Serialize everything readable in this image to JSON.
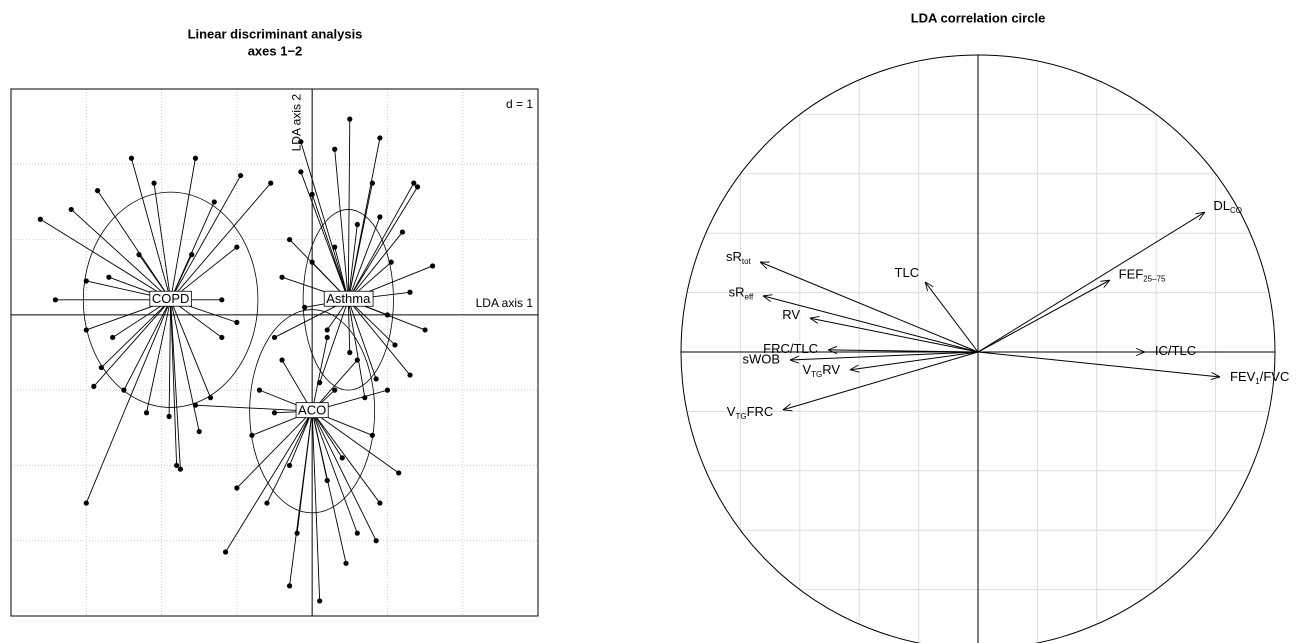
{
  "chart_data": [
    {
      "type": "scatter",
      "title": "Linear discriminant analysis",
      "subtitle": "axes 1−2",
      "grid_label": "d = 1",
      "xlabel": "LDA axis 1",
      "ylabel": "LDA axis 2",
      "xlim": [
        -4,
        3
      ],
      "ylim": [
        -4,
        3
      ],
      "xticks": [
        -3,
        -2,
        -1,
        1,
        2
      ],
      "yticks": [
        -3,
        -2,
        -1,
        1,
        2
      ],
      "series": [
        {
          "name": "COPD",
          "cx": -1.88,
          "cy": 0.2,
          "rx": 1.16,
          "ry": 1.43,
          "x": [
            -3.61,
            -3.41,
            -3.2,
            -2.85,
            -2.4,
            -2.1,
            -1.55,
            -1.3,
            -0.95,
            -0.55,
            -1.0,
            -3.0,
            -2.7,
            -3.0,
            -2.8,
            -2.5,
            -2.2,
            -1.9,
            -1.8,
            -1.5,
            -1.35,
            -3.0,
            -2.9,
            -1.2,
            -1.0,
            -2.3,
            -1.6,
            -1.2,
            -2.65,
            -1.75
          ],
          "y": [
            1.27,
            0.2,
            1.4,
            1.65,
            2.08,
            1.75,
            2.08,
            1.5,
            1.85,
            1.75,
            0.9,
            0.45,
            0.5,
            -0.2,
            -0.7,
            -1.0,
            -1.3,
            -1.35,
            -2.0,
            -1.55,
            -1.1,
            -2.5,
            -0.95,
            -0.3,
            -0.1,
            0.8,
            0.8,
            0.2,
            -0.3,
            -2.05
          ]
        },
        {
          "name": "Asthma",
          "cx": 0.48,
          "cy": 0.2,
          "rx": 0.6,
          "ry": 1.2,
          "x": [
            0.5,
            0.9,
            0.3,
            0.8,
            1.35,
            1.4,
            0.0,
            -0.3,
            1.2,
            1.05,
            1.6,
            1.3,
            0.0,
            -0.4,
            -0.1,
            0.2,
            0.5,
            1.1,
            1.3,
            0.7,
            0.1,
            -0.15,
            -0.15,
            1.0,
            0.6,
            0.3,
            0.9,
            -0.5,
            1.5,
            0.85
          ],
          "y": [
            2.6,
            2.35,
            2.2,
            1.75,
            1.75,
            1.7,
            1.6,
            1.0,
            1.1,
            0.7,
            0.65,
            0.3,
            0.7,
            0.5,
            0.1,
            -0.2,
            -0.5,
            -0.4,
            -0.8,
            -1.1,
            -0.9,
            1.9,
            2.3,
            0.0,
            1.2,
            0.9,
            1.3,
            -0.3,
            -0.2,
            -0.85
          ]
        },
        {
          "name": "ACO",
          "cx": 0.0,
          "cy": -1.28,
          "rx": 0.83,
          "ry": 1.35,
          "x": [
            -1.15,
            -0.3,
            0.1,
            0.45,
            0.9,
            1.15,
            0.8,
            1.0,
            0.6,
            0.2,
            -0.4,
            -0.7,
            -0.8,
            -1.0,
            -0.6,
            -0.3,
            0.2,
            0.4,
            -0.2,
            0.6,
            -0.5,
            0.3,
            -1.55,
            0.85
          ],
          "y": [
            -3.15,
            -3.6,
            -3.8,
            -3.3,
            -2.5,
            -2.1,
            -1.6,
            -1.0,
            -0.6,
            -0.3,
            -0.6,
            -1.0,
            -1.6,
            -2.3,
            -2.5,
            -2.0,
            -2.2,
            -1.9,
            -2.9,
            -2.9,
            -1.3,
            -1.0,
            -1.2,
            -3.0
          ]
        }
      ]
    },
    {
      "type": "correlation_circle",
      "title": "LDA correlation circle",
      "xlim": [
        -1,
        1
      ],
      "ylim": [
        -1,
        1
      ],
      "grid": [
        -0.8,
        -0.6,
        -0.4,
        -0.2,
        0.2,
        0.4,
        0.6,
        0.8
      ],
      "arrows": [
        {
          "label": [
            "DL",
            "CO"
          ],
          "x": 0.764,
          "y": 0.471
        },
        {
          "label": [
            "FEF",
            "25–75"
          ],
          "x": 0.444,
          "y": 0.242
        },
        {
          "label": [
            "IC/TLC"
          ],
          "x": 0.562,
          "y": 0
        },
        {
          "label": [
            "FEV",
            "1",
            "/FVC"
          ],
          "x": 0.815,
          "y": -0.084
        },
        {
          "label": [
            "TLC"
          ],
          "x": -0.178,
          "y": 0.236
        },
        {
          "label": [
            "sR",
            "tot"
          ],
          "x": -0.734,
          "y": 0.303
        },
        {
          "label": [
            "sR",
            "eff"
          ],
          "x": -0.724,
          "y": 0.189
        },
        {
          "label": [
            "RV"
          ],
          "x": -0.566,
          "y": 0.114
        },
        {
          "label": [
            "FRC/TLC"
          ],
          "x": -0.505,
          "y": 0.007
        },
        {
          "label": [
            "V",
            "TG",
            "RV"
          ],
          "x": -0.431,
          "y": -0.06
        },
        {
          "label": [
            "sWOB"
          ],
          "x": -0.633,
          "y": -0.027
        },
        {
          "label": [
            "V",
            "TG",
            "FRC"
          ],
          "x": -0.657,
          "y": -0.195
        }
      ]
    }
  ]
}
